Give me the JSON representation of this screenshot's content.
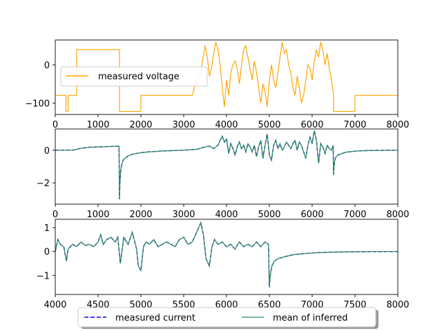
{
  "chart_data": [
    {
      "type": "line",
      "title": "",
      "xlabel": "",
      "ylabel": "",
      "xlim": [
        0,
        8000
      ],
      "ylim": [
        -130,
        65
      ],
      "xticks": [
        "0",
        "1000",
        "2000",
        "3000",
        "4000",
        "5000",
        "6000",
        "7000",
        "8000"
      ],
      "yticks": [
        "0",
        "−100"
      ],
      "grid": false,
      "legend": {
        "location": "center-left",
        "entries": [
          "measured voltage"
        ]
      },
      "series": [
        {
          "name": "measured voltage",
          "color": "#ffa500",
          "x": [
            0,
            250,
            250,
            300,
            300,
            500,
            500,
            1500,
            1500,
            2000,
            2000,
            2500,
            2500,
            3000,
            3000,
            3200,
            3300,
            3400,
            3450,
            3500,
            3550,
            3600,
            3650,
            3700,
            3750,
            3800,
            3850,
            3900,
            3950,
            4000,
            4050,
            4100,
            4150,
            4200,
            4250,
            4300,
            4350,
            4400,
            4450,
            4500,
            4550,
            4600,
            4650,
            4700,
            4750,
            4800,
            4850,
            4900,
            4950,
            5000,
            5050,
            5100,
            5150,
            5200,
            5250,
            5300,
            5350,
            5400,
            5450,
            5500,
            5550,
            5600,
            5650,
            5700,
            5750,
            5800,
            5850,
            5900,
            5950,
            6000,
            6050,
            6100,
            6150,
            6200,
            6250,
            6300,
            6350,
            6400,
            6450,
            6500,
            6500,
            7000,
            7000,
            8000
          ],
          "y": [
            -80,
            -80,
            -122,
            -122,
            -80,
            -80,
            40,
            40,
            -122,
            -122,
            -80,
            -80,
            -80,
            -80,
            -80,
            -80,
            -40,
            -20,
            20,
            50,
            20,
            -30,
            -10,
            30,
            60,
            40,
            0,
            -60,
            -110,
            -40,
            -80,
            -20,
            0,
            10,
            -10,
            -50,
            0,
            40,
            50,
            20,
            -10,
            -40,
            10,
            -20,
            -60,
            -100,
            -50,
            -70,
            -110,
            -40,
            0,
            -40,
            -60,
            -20,
            20,
            60,
            30,
            40,
            0,
            -20,
            -60,
            -80,
            -30,
            -60,
            -100,
            -80,
            -40,
            0,
            -10,
            -40,
            10,
            40,
            20,
            60,
            40,
            0,
            30,
            -10,
            -40,
            -80,
            -122,
            -122,
            -80,
            -80
          ]
        }
      ]
    },
    {
      "type": "line",
      "title": "",
      "xlabel": "",
      "ylabel": "",
      "xlim": [
        0,
        8000
      ],
      "ylim": [
        -3.3,
        1.3
      ],
      "xticks": [
        "0",
        "1000",
        "2000",
        "3000",
        "4000",
        "5000",
        "6000",
        "7000",
        "8000"
      ],
      "yticks": [
        "0",
        "−2"
      ],
      "grid": false,
      "series": [
        {
          "name": "measured current",
          "color": "#0000ff",
          "style": "dashed",
          "x": [
            0,
            400,
            500,
            600,
            800,
            1000,
            1200,
            1400,
            1490,
            1500,
            1510,
            1530,
            1560,
            1600,
            1700,
            1800,
            2000,
            2200,
            2500,
            3000,
            3300,
            3500,
            3600,
            3700,
            3800,
            3850,
            3900,
            3950,
            4000,
            4050,
            4100,
            4150,
            4200,
            4250,
            4300,
            4350,
            4400,
            4450,
            4500,
            4550,
            4600,
            4650,
            4700,
            4750,
            4800,
            4850,
            4900,
            4950,
            5000,
            5050,
            5100,
            5150,
            5200,
            5250,
            5300,
            5350,
            5400,
            5450,
            5500,
            5550,
            5600,
            5650,
            5700,
            5750,
            5800,
            5850,
            5900,
            5950,
            6000,
            6050,
            6100,
            6150,
            6200,
            6250,
            6300,
            6350,
            6400,
            6450,
            6490,
            6500,
            6510,
            6530,
            6560,
            6600,
            6700,
            6800,
            7000,
            7200,
            7500,
            8000
          ],
          "y": [
            0,
            0,
            0.05,
            0.12,
            0.18,
            0.2,
            0.22,
            0.24,
            0.24,
            -3.0,
            -2.0,
            -1.2,
            -0.8,
            -0.55,
            -0.35,
            -0.25,
            -0.15,
            -0.1,
            -0.05,
            0,
            0.05,
            0.2,
            0.25,
            0.1,
            0.3,
            0.6,
            0.85,
            0.5,
            0.7,
            -0.2,
            0.4,
            0.1,
            -0.3,
            0.2,
            0.5,
            0.1,
            0.3,
            -0.1,
            0.4,
            0.2,
            -0.1,
            0.3,
            -0.4,
            0.2,
            0.6,
            -0.5,
            0.3,
            1.0,
            -0.3,
            -0.6,
            0.3,
            0.6,
            0.1,
            0.4,
            0.0,
            0.2,
            0.5,
            0.3,
            0.1,
            0.4,
            0.6,
            0.0,
            0.5,
            0.3,
            -0.1,
            -0.5,
            0.3,
            0.8,
            0.4,
            1.2,
            0.6,
            -0.8,
            0.4,
            0.2,
            -0.2,
            0.3,
            0.1,
            0.0,
            0.3,
            -1.5,
            -1.0,
            -0.6,
            -0.4,
            -0.3,
            -0.2,
            -0.12,
            -0.06,
            -0.03,
            -0.01,
            0
          ]
        },
        {
          "name": "mean of inferred",
          "color": "#2e8b57",
          "x": [
            0,
            400,
            500,
            600,
            800,
            1000,
            1200,
            1400,
            1490,
            1500,
            1510,
            1530,
            1560,
            1600,
            1700,
            1800,
            2000,
            2200,
            2500,
            3000,
            3300,
            3500,
            3600,
            3700,
            3800,
            3850,
            3900,
            3950,
            4000,
            4050,
            4100,
            4150,
            4200,
            4250,
            4300,
            4350,
            4400,
            4450,
            4500,
            4550,
            4600,
            4650,
            4700,
            4750,
            4800,
            4850,
            4900,
            4950,
            5000,
            5050,
            5100,
            5150,
            5200,
            5250,
            5300,
            5350,
            5400,
            5450,
            5500,
            5550,
            5600,
            5650,
            5700,
            5750,
            5800,
            5850,
            5900,
            5950,
            6000,
            6050,
            6100,
            6150,
            6200,
            6250,
            6300,
            6350,
            6400,
            6450,
            6490,
            6500,
            6510,
            6530,
            6560,
            6600,
            6700,
            6800,
            7000,
            7200,
            7500,
            8000
          ],
          "y": [
            0,
            0,
            0.05,
            0.12,
            0.18,
            0.2,
            0.22,
            0.24,
            0.24,
            -3.0,
            -2.0,
            -1.2,
            -0.8,
            -0.55,
            -0.35,
            -0.25,
            -0.15,
            -0.1,
            -0.05,
            0,
            0.05,
            0.2,
            0.25,
            0.1,
            0.3,
            0.6,
            0.85,
            0.5,
            0.7,
            -0.2,
            0.4,
            0.1,
            -0.3,
            0.2,
            0.5,
            0.1,
            0.3,
            -0.1,
            0.4,
            0.2,
            -0.1,
            0.3,
            -0.4,
            0.2,
            0.6,
            -0.5,
            0.3,
            1.0,
            -0.3,
            -0.6,
            0.3,
            0.6,
            0.1,
            0.4,
            0.0,
            0.2,
            0.5,
            0.3,
            0.1,
            0.4,
            0.6,
            0.0,
            0.5,
            0.3,
            -0.1,
            -0.5,
            0.3,
            0.8,
            0.4,
            1.2,
            0.6,
            -0.8,
            0.4,
            0.2,
            -0.2,
            0.3,
            0.1,
            0.0,
            0.3,
            -1.5,
            -1.0,
            -0.6,
            -0.4,
            -0.3,
            -0.2,
            -0.12,
            -0.06,
            -0.03,
            -0.01,
            0
          ]
        }
      ]
    },
    {
      "type": "line",
      "title": "",
      "xlabel": "",
      "ylabel": "",
      "xlim": [
        4000,
        8000
      ],
      "ylim": [
        -1.8,
        1.35
      ],
      "xticks": [
        "4000",
        "4500",
        "5000",
        "5500",
        "6000",
        "6500",
        "7000",
        "7500",
        "8000"
      ],
      "yticks": [
        "1",
        "0",
        "−1"
      ],
      "grid": false,
      "series": [
        {
          "name": "measured current",
          "color": "#0000ff",
          "style": "dashed",
          "x": [
            4000,
            4030,
            4060,
            4100,
            4130,
            4150,
            4200,
            4250,
            4300,
            4350,
            4400,
            4450,
            4500,
            4530,
            4560,
            4600,
            4650,
            4700,
            4730,
            4760,
            4800,
            4850,
            4900,
            4950,
            4970,
            5000,
            5030,
            5060,
            5100,
            5150,
            5200,
            5250,
            5300,
            5350,
            5400,
            5450,
            5500,
            5550,
            5600,
            5650,
            5700,
            5730,
            5760,
            5800,
            5830,
            5860,
            5900,
            5950,
            6000,
            6050,
            6100,
            6150,
            6200,
            6250,
            6300,
            6350,
            6400,
            6450,
            6490,
            6500,
            6510,
            6530,
            6560,
            6600,
            6700,
            6800,
            7000,
            7200,
            7500,
            8000
          ],
          "y": [
            0.0,
            0.5,
            0.3,
            0.2,
            -0.4,
            0.1,
            0.3,
            0.2,
            0.4,
            0.25,
            0.3,
            0.2,
            0.4,
            0.7,
            0.3,
            0.5,
            0.6,
            0.4,
            0.6,
            -0.5,
            0.6,
            0.3,
            0.8,
            0.1,
            -0.6,
            -0.8,
            0.2,
            0.4,
            0.3,
            0.5,
            0.2,
            0.3,
            0.4,
            0.3,
            0.2,
            0.5,
            0.6,
            0.3,
            0.4,
            0.8,
            1.2,
            0.7,
            -0.3,
            -0.6,
            0.2,
            0.5,
            0.3,
            0.4,
            0.2,
            0.3,
            0.1,
            0.4,
            0.2,
            0.3,
            0.2,
            0.4,
            0.2,
            0.4,
            0.3,
            -1.5,
            -1.0,
            -0.6,
            -0.4,
            -0.3,
            -0.2,
            -0.12,
            -0.06,
            -0.03,
            -0.01,
            0
          ]
        },
        {
          "name": "mean of inferred",
          "color": "#2e8b57",
          "x": [
            4000,
            4030,
            4060,
            4100,
            4130,
            4150,
            4200,
            4250,
            4300,
            4350,
            4400,
            4450,
            4500,
            4530,
            4560,
            4600,
            4650,
            4700,
            4730,
            4760,
            4800,
            4850,
            4900,
            4950,
            4970,
            5000,
            5030,
            5060,
            5100,
            5150,
            5200,
            5250,
            5300,
            5350,
            5400,
            5450,
            5500,
            5550,
            5600,
            5650,
            5700,
            5730,
            5760,
            5800,
            5830,
            5860,
            5900,
            5950,
            6000,
            6050,
            6100,
            6150,
            6200,
            6250,
            6300,
            6350,
            6400,
            6450,
            6490,
            6500,
            6510,
            6530,
            6560,
            6600,
            6700,
            6800,
            7000,
            7200,
            7500,
            8000
          ],
          "y": [
            0.0,
            0.5,
            0.3,
            0.2,
            -0.4,
            0.1,
            0.3,
            0.2,
            0.4,
            0.25,
            0.3,
            0.2,
            0.4,
            0.7,
            0.3,
            0.5,
            0.6,
            0.4,
            0.6,
            -0.5,
            0.6,
            0.3,
            0.8,
            0.1,
            -0.6,
            -0.8,
            0.2,
            0.4,
            0.3,
            0.5,
            0.2,
            0.3,
            0.4,
            0.3,
            0.2,
            0.5,
            0.6,
            0.3,
            0.4,
            0.8,
            1.2,
            0.7,
            -0.3,
            -0.6,
            0.2,
            0.5,
            0.3,
            0.4,
            0.2,
            0.3,
            0.1,
            0.4,
            0.2,
            0.3,
            0.2,
            0.4,
            0.2,
            0.4,
            0.3,
            -1.5,
            -1.0,
            -0.6,
            -0.4,
            -0.3,
            -0.2,
            -0.12,
            -0.06,
            -0.03,
            -0.01,
            0
          ]
        }
      ]
    }
  ],
  "figure_legend": {
    "location": "bottom-center",
    "entries": [
      {
        "label": "measured current",
        "color": "#0000ff",
        "style": "dashed"
      },
      {
        "label": "mean of inferred",
        "color": "#2e8b57",
        "style": "solid"
      }
    ]
  }
}
